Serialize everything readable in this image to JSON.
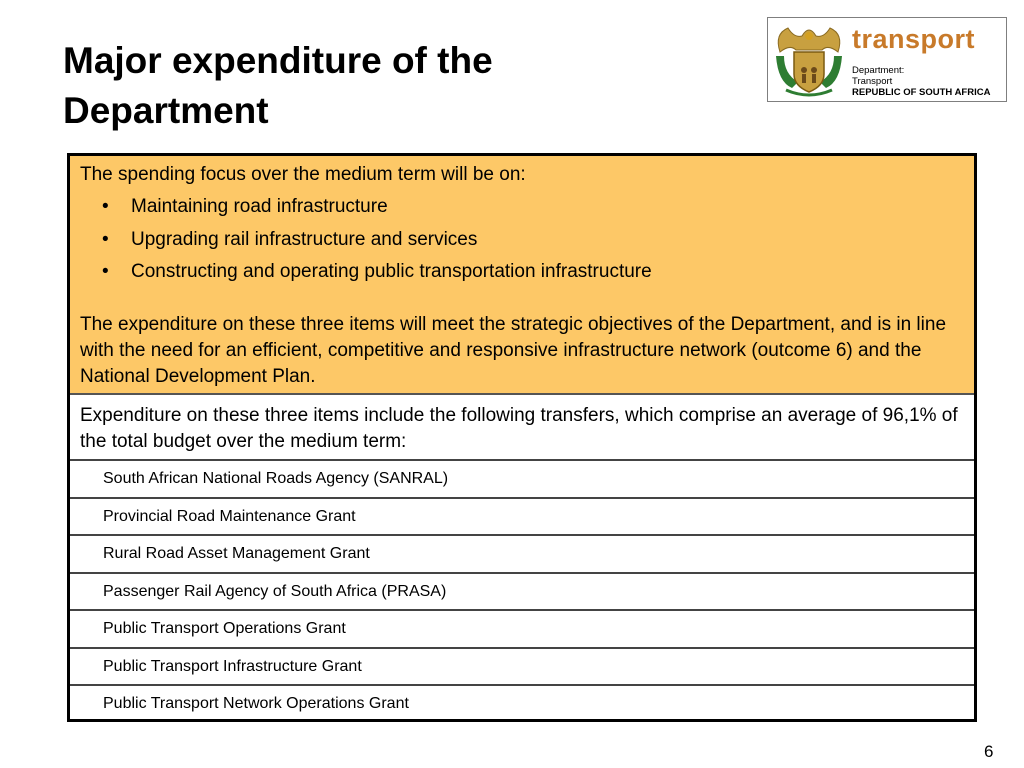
{
  "slide": {
    "title_line1": "Major expenditure of the",
    "title_line2": "Department",
    "page_number": "6"
  },
  "logo": {
    "word": "transport",
    "line1": "Department:",
    "line2": "Transport",
    "line3": "REPUBLIC OF SOUTH AFRICA",
    "colors": {
      "word": "#c87a2a",
      "shield_gold": "#c8a040",
      "crest_green": "#2e7d32"
    }
  },
  "focus": {
    "intro": "The spending focus over the medium term will be on:",
    "bullet_marker": "•",
    "bullets": [
      "Maintaining road infrastructure",
      "Upgrading rail infrastructure and services",
      "Constructing and operating public transportation infrastructure"
    ],
    "paragraph": "The expenditure on these three items will meet the strategic objectives of the Department, and is in line with the need for an efficient, competitive and responsive infrastructure network (outcome 6) and the National Development Plan.",
    "background_color": "#fdc867"
  },
  "transfers": {
    "intro": "Expenditure on these three items include the following transfers, which comprise an average  of 96,1% of the total budget over the medium term:",
    "items": [
      "South African National Roads Agency (SANRAL)",
      "Provincial Road Maintenance Grant",
      "Rural Road Asset Management Grant",
      "Passenger Rail Agency of South Africa (PRASA)",
      "Public Transport Operations Grant",
      "Public Transport Infrastructure Grant",
      "Public Transport Network Operations Grant"
    ]
  }
}
